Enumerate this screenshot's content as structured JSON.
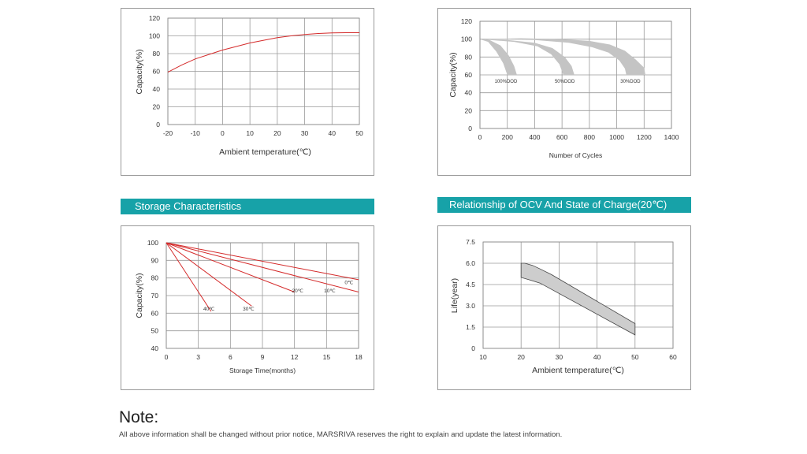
{
  "banners": {
    "storage": "Storage Characteristics",
    "ocv": "Relationship of OCV And State of Charge(20℃)"
  },
  "note": {
    "title": "Note:",
    "text": "All above information  shall be changed without prior notice, MARSRIVA reserves the right to explain and update the latest information."
  },
  "chart_data": [
    {
      "id": "temp",
      "type": "line",
      "xlabel": "Ambient temperature(℃)",
      "ylabel": "Capacity(%)",
      "xticks": [
        -20,
        -10,
        0,
        10,
        20,
        30,
        40,
        50
      ],
      "yticks": [
        0,
        20,
        40,
        60,
        80,
        100,
        120
      ],
      "xlim": [
        -20,
        50
      ],
      "ylim": [
        0,
        120
      ],
      "series": [
        {
          "color": "#d42a2a",
          "points": [
            [
              -20,
              59
            ],
            [
              -15,
              67
            ],
            [
              -10,
              74
            ],
            [
              -5,
              79
            ],
            [
              0,
              84
            ],
            [
              5,
              88
            ],
            [
              10,
              92
            ],
            [
              15,
              95
            ],
            [
              20,
              98
            ],
            [
              25,
              100
            ],
            [
              30,
              101.5
            ],
            [
              35,
              102.7
            ],
            [
              40,
              103.3
            ],
            [
              45,
              103.6
            ],
            [
              50,
              103.6
            ]
          ]
        }
      ]
    },
    {
      "id": "cycles",
      "type": "area",
      "xlabel": "Number of Cycles",
      "ylabel": "Capacity(%)",
      "xticks": [
        0,
        200,
        400,
        600,
        800,
        1000,
        1200,
        1400
      ],
      "yticks": [
        0,
        20,
        40,
        60,
        80,
        100,
        120
      ],
      "xlim": [
        0,
        1400
      ],
      "ylim": [
        0,
        120
      ],
      "bands": [
        {
          "label": "100%DOD",
          "upper": [
            [
              0,
              100
            ],
            [
              70,
              99
            ],
            [
              150,
              93
            ],
            [
              210,
              82
            ],
            [
              250,
              70
            ],
            [
              270,
              60
            ]
          ],
          "lower": [
            [
              0,
              100
            ],
            [
              60,
              97
            ],
            [
              120,
              86
            ],
            [
              170,
              73
            ],
            [
              200,
              60
            ]
          ],
          "label_at": [
            190,
            51
          ]
        },
        {
          "label": "50%DOD",
          "upper": [
            [
              0,
              100
            ],
            [
              200,
              99
            ],
            [
              400,
              96
            ],
            [
              530,
              90
            ],
            [
              620,
              80
            ],
            [
              670,
              70
            ],
            [
              690,
              60
            ]
          ],
          "lower": [
            [
              0,
              100
            ],
            [
              250,
              97
            ],
            [
              420,
              92
            ],
            [
              520,
              83
            ],
            [
              580,
              72
            ],
            [
              610,
              60
            ]
          ],
          "label_at": [
            620,
            51
          ]
        },
        {
          "label": "30%DOD",
          "upper": [
            [
              0,
              100
            ],
            [
              300,
              101
            ],
            [
              600,
              100
            ],
            [
              800,
              98
            ],
            [
              950,
              94
            ],
            [
              1060,
              87
            ],
            [
              1140,
              77
            ],
            [
              1200,
              68
            ],
            [
              1210,
              60
            ]
          ],
          "lower": [
            [
              0,
              100
            ],
            [
              400,
              99
            ],
            [
              650,
              96
            ],
            [
              820,
              91
            ],
            [
              940,
              85
            ],
            [
              1020,
              76
            ],
            [
              1060,
              67
            ],
            [
              1070,
              60
            ]
          ],
          "label_at": [
            1100,
            51
          ]
        }
      ]
    },
    {
      "id": "storage",
      "type": "line",
      "xlabel": "Storage Time(months)",
      "ylabel": "Capacity(%)",
      "xticks": [
        0,
        3,
        6,
        9,
        12,
        15,
        18
      ],
      "yticks": [
        40,
        50,
        60,
        70,
        80,
        90,
        100
      ],
      "xlim": [
        0,
        18
      ],
      "ylim": [
        40,
        100
      ],
      "series": [
        {
          "name": "0℃",
          "color": "#d42a2a",
          "points": [
            [
              0,
              100
            ],
            [
              18,
              79
            ]
          ],
          "label_at": [
            17.1,
            76.5
          ]
        },
        {
          "name": "10℃",
          "color": "#d42a2a",
          "points": [
            [
              0,
              100
            ],
            [
              18,
              72
            ]
          ],
          "label_at": [
            15.3,
            71.8
          ]
        },
        {
          "name": "20℃",
          "color": "#d42a2a",
          "points": [
            [
              0,
              100
            ],
            [
              12,
              72
            ]
          ],
          "label_at": [
            12.3,
            71.8
          ]
        },
        {
          "name": "30℃",
          "color": "#d42a2a",
          "points": [
            [
              0,
              100
            ],
            [
              8,
              64
            ]
          ],
          "label_at": [
            7.7,
            61.5
          ]
        },
        {
          "name": "40℃",
          "color": "#d42a2a",
          "points": [
            [
              0,
              100
            ],
            [
              4.2,
              61
            ]
          ],
          "label_at": [
            4.0,
            61.5
          ]
        }
      ]
    },
    {
      "id": "life",
      "type": "area",
      "xlabel": "Ambient temperature(℃)",
      "ylabel": "Life(year)",
      "xticks": [
        10,
        20,
        30,
        40,
        50,
        60
      ],
      "yticks": [
        "0",
        "1.5",
        "3.0",
        "4.5",
        "6.0",
        "7.5"
      ],
      "xlim": [
        10,
        60
      ],
      "ylim": [
        0,
        7.5
      ],
      "band": {
        "upper": [
          [
            20,
            6.0
          ],
          [
            21,
            6.0
          ],
          [
            23,
            5.85
          ],
          [
            25,
            5.6
          ],
          [
            28,
            5.2
          ],
          [
            50,
            1.75
          ]
        ],
        "lower": [
          [
            20,
            5.0
          ],
          [
            22,
            4.85
          ],
          [
            25,
            4.6
          ],
          [
            50,
            0.95
          ]
        ]
      }
    }
  ]
}
